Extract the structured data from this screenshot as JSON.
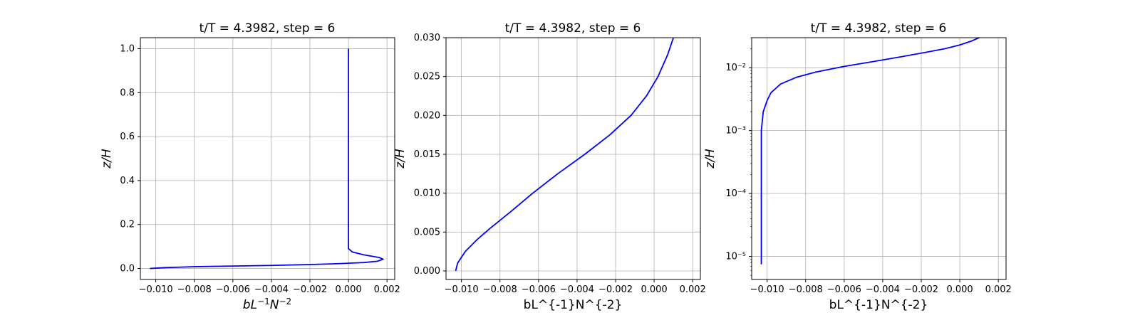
{
  "colors": {
    "series": "#0000ff",
    "grid": "#b0b0b0"
  },
  "chart_data": [
    {
      "type": "line",
      "title": "t/T = 4.3982, step = 6",
      "xlabel": "bL⁻¹N⁻²",
      "ylabel": "z/H",
      "xlim": [
        -0.0108,
        0.0024
      ],
      "ylim": [
        -0.05,
        1.05
      ],
      "yscale": "linear",
      "grid": true,
      "xticks": [
        -0.01,
        -0.008,
        -0.006,
        -0.004,
        -0.002,
        0.0,
        0.002
      ],
      "xticklabels": [
        "−0.010",
        "−0.008",
        "−0.006",
        "−0.004",
        "−0.002",
        "0.000",
        "0.002"
      ],
      "yticks": [
        0.0,
        0.2,
        0.4,
        0.6,
        0.8,
        1.0
      ],
      "yticklabels": [
        "0.0",
        "0.2",
        "0.4",
        "0.6",
        "0.8",
        "1.0"
      ],
      "series": [
        {
          "name": "b",
          "x": [
            -0.0103,
            -0.0095,
            -0.008,
            -0.006,
            -0.004,
            -0.002,
            -0.0005,
            0.0008,
            0.0015,
            0.0018,
            0.0016,
            0.0008,
            0.0002,
            0.0,
            0.0,
            0.0,
            0.0,
            0.0,
            0.0,
            0.0
          ],
          "y": [
            0.0,
            0.004,
            0.008,
            0.011,
            0.014,
            0.018,
            0.022,
            0.027,
            0.033,
            0.042,
            0.05,
            0.062,
            0.075,
            0.09,
            0.105,
            0.13,
            0.15,
            0.4,
            0.7,
            1.0
          ]
        }
      ]
    },
    {
      "type": "line",
      "title": "t/T = 4.3982, step = 6",
      "xlabel": "bL^{-1}N^{-2}",
      "ylabel": "z/H",
      "xlim": [
        -0.0108,
        0.0024
      ],
      "ylim": [
        -0.0011,
        0.03
      ],
      "yscale": "linear",
      "grid": true,
      "xticks": [
        -0.01,
        -0.008,
        -0.006,
        -0.004,
        -0.002,
        0.0,
        0.002
      ],
      "xticklabels": [
        "−0.010",
        "−0.008",
        "−0.006",
        "−0.004",
        "−0.002",
        "0.000",
        "0.002"
      ],
      "yticks": [
        0.0,
        0.005,
        0.01,
        0.015,
        0.02,
        0.025,
        0.03
      ],
      "yticklabels": [
        "0.000",
        "0.005",
        "0.010",
        "0.015",
        "0.020",
        "0.025",
        "0.030"
      ],
      "series": [
        {
          "name": "b",
          "x": [
            -0.0103,
            -0.0102,
            -0.0098,
            -0.0092,
            -0.0085,
            -0.0075,
            -0.0063,
            -0.005,
            -0.0036,
            -0.0023,
            -0.0012,
            -0.0004,
            0.0002,
            0.0007,
            0.001
          ],
          "y": [
            0.0,
            0.001,
            0.0025,
            0.004,
            0.0055,
            0.0075,
            0.01,
            0.0125,
            0.015,
            0.0175,
            0.02,
            0.0225,
            0.025,
            0.0278,
            0.03
          ]
        }
      ]
    },
    {
      "type": "line",
      "title": "t/T = 4.3982, step = 6",
      "xlabel": "bL^{-1}N^{-2}",
      "ylabel": "z/H",
      "xlim": [
        -0.0108,
        0.0024
      ],
      "ylim": [
        4.3e-06,
        0.03
      ],
      "yscale": "log",
      "grid": true,
      "xticks": [
        -0.01,
        -0.008,
        -0.006,
        -0.004,
        -0.002,
        0.0,
        0.002
      ],
      "xticklabels": [
        "−0.010",
        "−0.008",
        "−0.006",
        "−0.004",
        "−0.002",
        "0.000",
        "0.002"
      ],
      "yticks": [
        1e-05,
        0.0001,
        0.001,
        0.01
      ],
      "yticklabels": [
        "10⁻⁵",
        "10⁻⁴",
        "10⁻³",
        "10⁻²"
      ],
      "series": [
        {
          "name": "b",
          "x": [
            -0.0103,
            -0.0103,
            -0.0103,
            -0.0103,
            -0.0102,
            -0.01,
            -0.0098,
            -0.0093,
            -0.0085,
            -0.0075,
            -0.006,
            -0.0045,
            -0.003,
            -0.0018,
            -0.0008,
            0.0,
            0.0006,
            0.001
          ],
          "y": [
            7.5e-06,
            0.0001,
            0.0005,
            0.001,
            0.002,
            0.003,
            0.004,
            0.0055,
            0.007,
            0.0085,
            0.0105,
            0.0125,
            0.015,
            0.0175,
            0.02,
            0.023,
            0.0265,
            0.03
          ]
        }
      ]
    }
  ]
}
